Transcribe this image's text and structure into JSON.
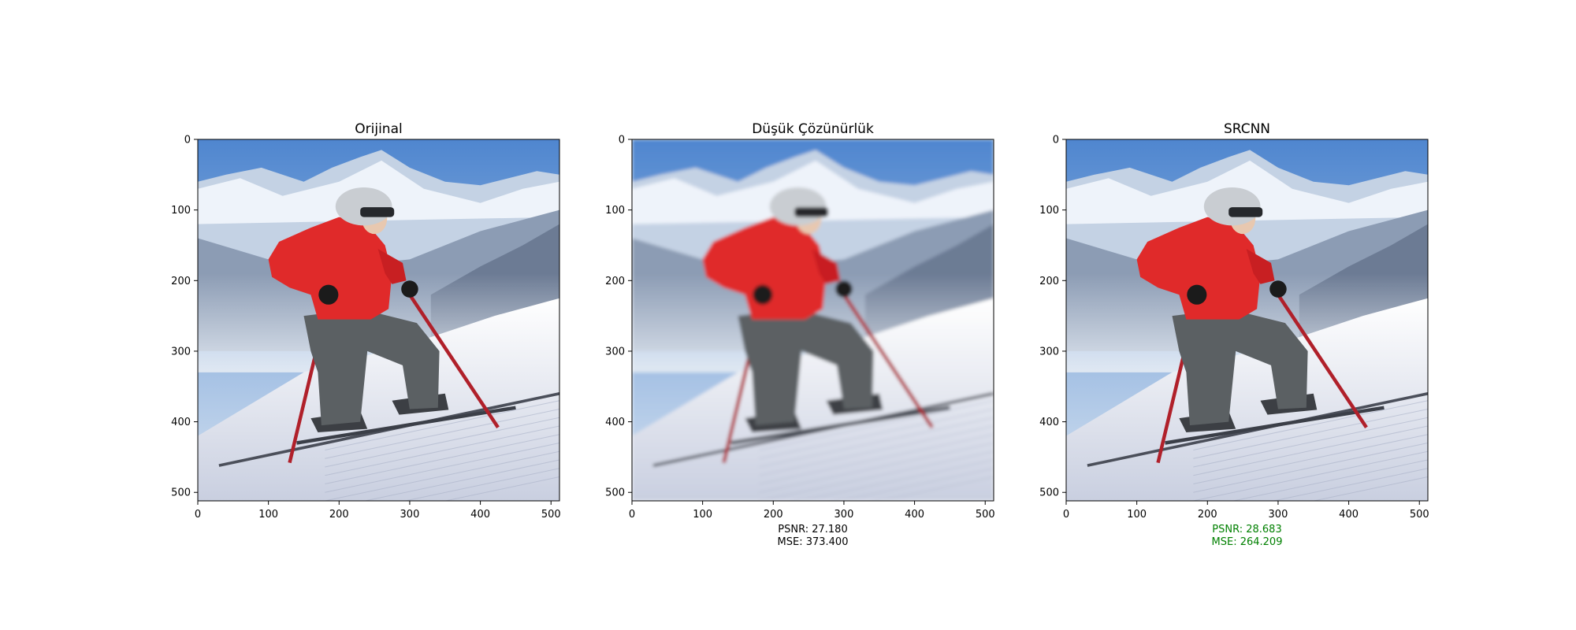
{
  "panels": [
    {
      "title": "Orijinal",
      "metrics": [],
      "metrics_color": "#000000",
      "blur": 0
    },
    {
      "title": "Düşük Çözünürlük",
      "metrics": [
        "PSNR: 27.180",
        "MSE: 373.400"
      ],
      "metrics_color": "#000000",
      "blur": 2.2
    },
    {
      "title": "SRCNN",
      "metrics": [
        "PSNR: 28.683",
        "MSE: 264.209"
      ],
      "metrics_color": "#008000",
      "blur": 0
    }
  ],
  "axis": {
    "x_ticks": [
      "0",
      "100",
      "200",
      "300",
      "400",
      "500"
    ],
    "y_ticks": [
      "0",
      "100",
      "200",
      "300",
      "400",
      "500"
    ],
    "pixel_extent": 512
  },
  "colors": {
    "sky_top": "#4f86cf",
    "sky_bottom": "#d5e2f0",
    "jacket": "#e02a2a",
    "pants": "#5b6063",
    "poles": "#b0202a",
    "snow": "#f2f5fb"
  }
}
